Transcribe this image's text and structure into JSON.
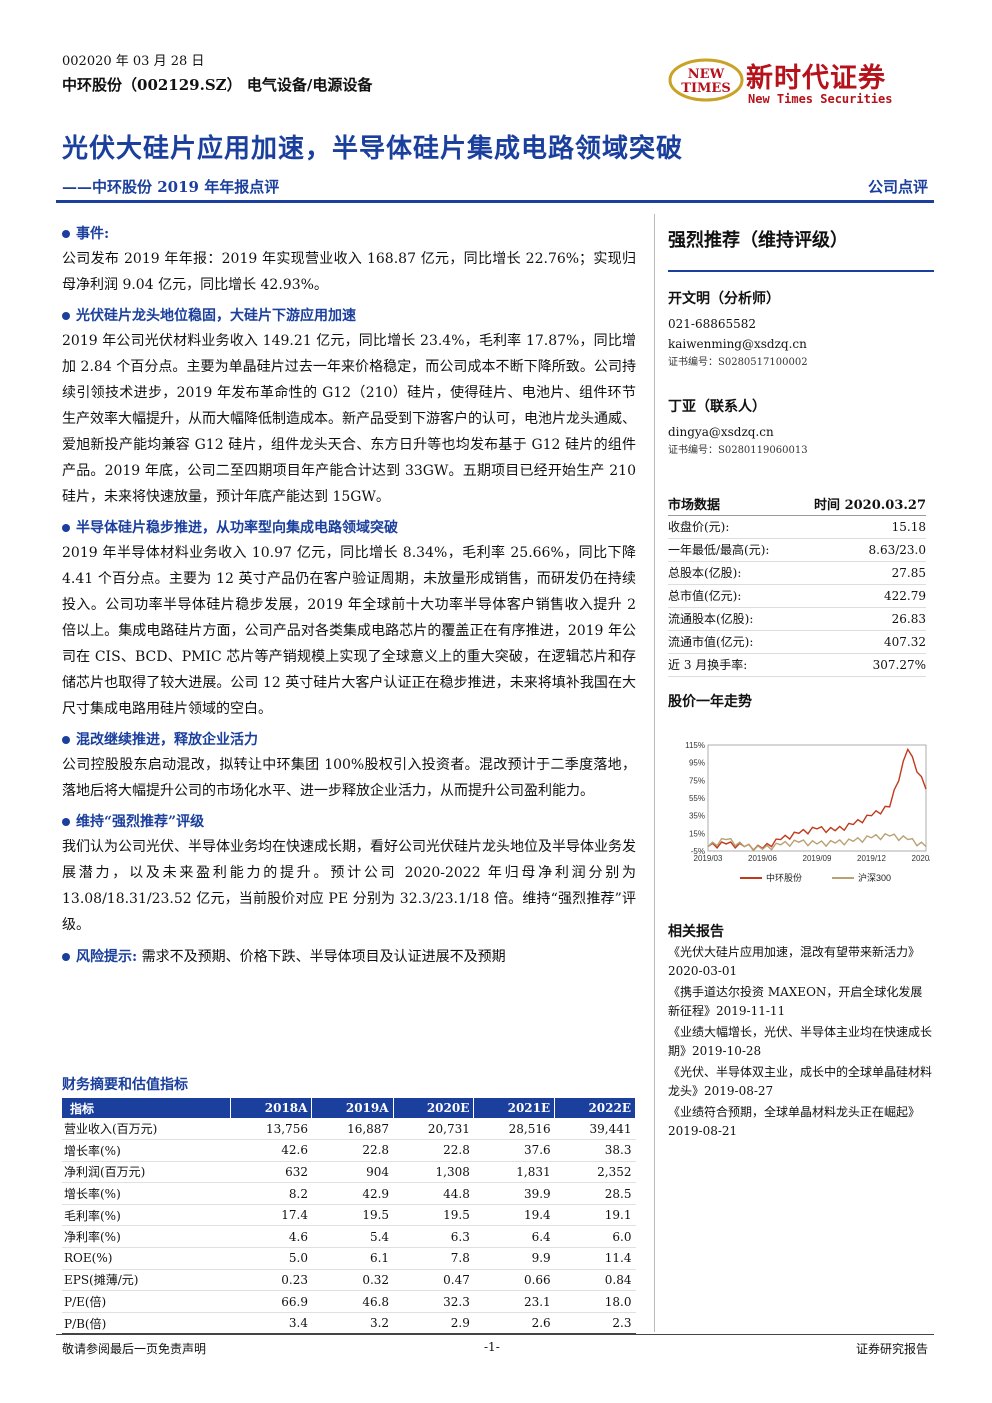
{
  "header": {
    "date": "002020 年 03 月 28 日",
    "stock": "中环股份（002129.SZ） 电气设备/电源设备",
    "logo_badge": "NEW TIMES",
    "logo_cn": "新时代证券",
    "logo_en": "New Times Securities"
  },
  "title": {
    "main": "光伏大硅片应用加速，半导体硅片集成电路领域突破",
    "sub": "——中环股份 2019 年年报点评",
    "type": "公司点评"
  },
  "sections": [
    {
      "heading": "事件:",
      "text": "公司发布 2019 年年报：2019 年实现营业收入 168.87 亿元，同比增长 22.76%；实现归母净利润 9.04 亿元，同比增长 42.93%。"
    },
    {
      "heading": "光伏硅片龙头地位稳固，大硅片下游应用加速",
      "text": "2019 年公司光伏材料业务收入 149.21 亿元，同比增长 23.4%，毛利率 17.87%，同比增加 2.84 个百分点。主要为单晶硅片过去一年来价格稳定，而公司成本不断下降所致。公司持续引领技术进步，2019 年发布革命性的 G12（210）硅片，使得硅片、电池片、组件环节生产效率大幅提升，从而大幅降低制造成本。新产品受到下游客户的认可，电池片龙头通威、爱旭新投产能均兼容 G12 硅片，组件龙头天合、东方日升等也均发布基于 G12 硅片的组件产品。2019 年底，公司二至四期项目年产能合计达到 33GW。五期项目已经开始生产 210 硅片，未来将快速放量，预计年底产能达到 15GW。"
    },
    {
      "heading": "半导体硅片稳步推进，从功率型向集成电路领域突破",
      "text": "2019 年半导体材料业务收入 10.97 亿元，同比增长 8.34%，毛利率 25.66%，同比下降 4.41 个百分点。主要为 12 英寸产品仍在客户验证周期，未放量形成销售，而研发仍在持续投入。公司功率半导体硅片稳步发展，2019 年全球前十大功率半导体客户销售收入提升 2 倍以上。集成电路硅片方面，公司产品对各类集成电路芯片的覆盖正在有序推进，2019 年公司在 CIS、BCD、PMIC 芯片等产销规模上实现了全球意义上的重大突破，在逻辑芯片和存储芯片也取得了较大进展。公司 12 英寸硅片大客户认证正在稳步推进，未来将填补我国在大尺寸集成电路用硅片领域的空白。"
    },
    {
      "heading": "混改继续推进，释放企业活力",
      "text": "公司控股股东启动混改，拟转让中环集团 100%股权引入投资者。混改预计于二季度落地，落地后将大幅提升公司的市场化水平、进一步释放企业活力，从而提升公司盈利能力。"
    },
    {
      "heading": "维持“强烈推荐”评级",
      "text": "我们认为公司光伏、半导体业务均在快速成长期，看好公司光伏硅片龙头地位及半导体业务发展潜力，以及未来盈利能力的提升。预计公司 2020-2022 年归母净利润分别为 13.08/18.31/23.52 亿元，当前股价对应 PE 分别为 32.3/23.1/18 倍。维持“强烈推荐”评级。"
    }
  ],
  "risk": {
    "label": "风险提示:",
    "text": " 需求不及预期、价格下跌、半导体项目及认证进展不及预期"
  },
  "rating": "强烈推荐（维持评级）",
  "analysts": [
    {
      "name": "开文明（分析师）",
      "phone": "021-68865582",
      "email": "kaiwenming@xsdzq.cn",
      "cert": "证书编号：S0280517100002"
    },
    {
      "name": "丁亚（联系人）",
      "email": "dingya@xsdzq.cn",
      "cert": "证书编号：S0280119060013"
    }
  ],
  "market": {
    "label": "市场数据",
    "time_label": "时间 2020.03.27",
    "rows": [
      {
        "k": "收盘价(元):",
        "v": "15.18"
      },
      {
        "k": "一年最低/最高(元):",
        "v": "8.63/23.0"
      },
      {
        "k": "总股本(亿股):",
        "v": "27.85"
      },
      {
        "k": "总市值(亿元):",
        "v": "422.79"
      },
      {
        "k": "流通股本(亿股):",
        "v": "26.83"
      },
      {
        "k": "流通市值(亿元):",
        "v": "407.32"
      },
      {
        "k": "近 3 月换手率:",
        "v": "307.27%"
      }
    ]
  },
  "chart_title": "股价一年走势",
  "chart_data": {
    "type": "line",
    "x": [
      "2019/03",
      "2019/04",
      "2019/05",
      "2019/06",
      "2019/07",
      "2019/08",
      "2019/09",
      "2019/10",
      "2019/11",
      "2019/12",
      "2020/01",
      "2020/02",
      "2020/03"
    ],
    "xticks": [
      "2019/03",
      "2019/06",
      "2019/09",
      "2019/12",
      "2020/03"
    ],
    "yticks": [
      "115%",
      "95%",
      "75%",
      "55%",
      "35%",
      "15%",
      "-5%"
    ],
    "ylim": [
      -5,
      115
    ],
    "series": [
      {
        "name": "中环股份",
        "color": "#c0391b",
        "values": [
          0,
          3,
          0,
          -2,
          8,
          15,
          20,
          18,
          25,
          35,
          45,
          110,
          65
        ]
      },
      {
        "name": "沪深300",
        "color": "#b8a274",
        "values": [
          0,
          8,
          0,
          -3,
          2,
          5,
          3,
          4,
          6,
          10,
          12,
          8,
          0
        ]
      }
    ]
  },
  "related": {
    "title": "相关报告",
    "items": [
      "《光伏大硅片应用加速，混改有望带来新活力》2020-03-01",
      "《携手道达尔投资 MAXEON，开启全球化发展新征程》2019-11-11",
      "《业绩大幅增长，光伏、半导体主业均在快速成长期》2019-10-28",
      "《光伏、半导体双主业，成长中的全球单晶硅材料龙头》2019-08-27",
      "《业绩符合预期，全球单晶材料龙头正在崛起》2019-08-21"
    ]
  },
  "fin": {
    "title": "财务摘要和估值指标",
    "headers": [
      "指标",
      "2018A",
      "2019A",
      "2020E",
      "2021E",
      "2022E"
    ],
    "rows": [
      [
        "营业收入(百万元)",
        "13,756",
        "16,887",
        "20,731",
        "28,516",
        "39,441"
      ],
      [
        "增长率(%)",
        "42.6",
        "22.8",
        "22.8",
        "37.6",
        "38.3"
      ],
      [
        "净利润(百万元)",
        "632",
        "904",
        "1,308",
        "1,831",
        "2,352"
      ],
      [
        "增长率(%)",
        "8.2",
        "42.9",
        "44.8",
        "39.9",
        "28.5"
      ],
      [
        "毛利率(%)",
        "17.4",
        "19.5",
        "19.5",
        "19.4",
        "19.1"
      ],
      [
        "净利率(%)",
        "4.6",
        "5.4",
        "6.3",
        "6.4",
        "6.0"
      ],
      [
        "ROE(%)",
        "5.0",
        "6.1",
        "7.8",
        "9.9",
        "11.4"
      ],
      [
        "EPS(摊薄/元)",
        "0.23",
        "0.32",
        "0.47",
        "0.66",
        "0.84"
      ],
      [
        "P/E(倍)",
        "66.9",
        "46.8",
        "32.3",
        "23.1",
        "18.0"
      ],
      [
        "P/B(倍)",
        "3.4",
        "3.2",
        "2.9",
        "2.6",
        "2.3"
      ]
    ]
  },
  "footer": {
    "left": "敬请参阅最后一页免责声明",
    "center": "-1-",
    "right": "证券研究报告"
  }
}
